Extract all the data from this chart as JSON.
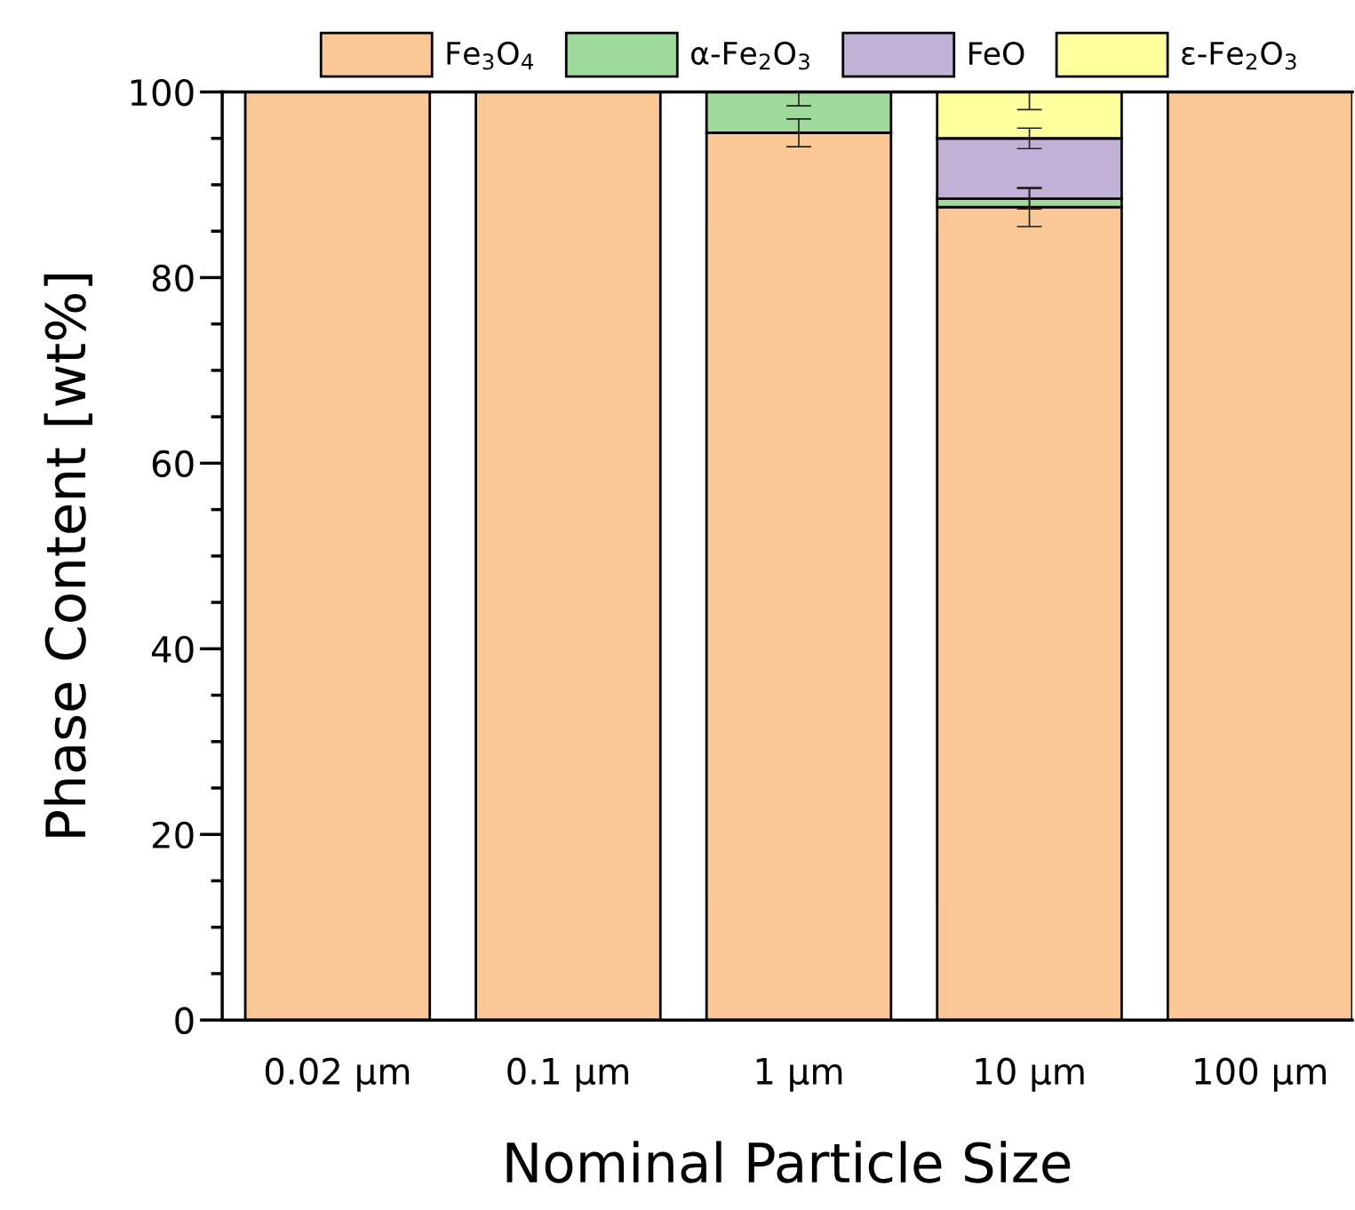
{
  "chart_data": {
    "type": "bar",
    "stacked": true,
    "xlabel": "Nominal Particle Size",
    "ylabel": "Phase Content [wt%]",
    "categories": [
      "0.02 µm",
      "0.1 µm",
      "1 µm",
      "10 µm",
      "100 µm"
    ],
    "series": [
      {
        "name": "Fe$_{3}$O$_{4}$",
        "color": "#fac796",
        "values": [
          100,
          100,
          95.6,
          87.6,
          100
        ],
        "errors": [
          null,
          null,
          1.5,
          2.1,
          null
        ]
      },
      {
        "name": "α-Fe$_{2}$O$_{3}$",
        "color": "#a0d99c",
        "values": [
          null,
          null,
          4.4,
          0.9,
          null
        ],
        "errors": [
          null,
          null,
          [
            98.5,
            100
          ],
          1.1,
          null
        ]
      },
      {
        "name": "FeO",
        "color": "#c2b1d6",
        "values": [
          null,
          null,
          null,
          6.5,
          null
        ],
        "errors": [
          null,
          null,
          null,
          1.1,
          null
        ]
      },
      {
        "name": "ε-Fe$_{2}$O$_{3}$",
        "color": "#fefe9c",
        "values": [
          null,
          null,
          null,
          5.0,
          null
        ],
        "errors": [
          null,
          null,
          null,
          [
            98.1,
            100
          ],
          null
        ]
      }
    ],
    "ylim": [
      0,
      100
    ],
    "yticks": [
      0,
      20,
      40,
      60,
      80,
      100
    ],
    "grid": false,
    "legend": "top"
  }
}
